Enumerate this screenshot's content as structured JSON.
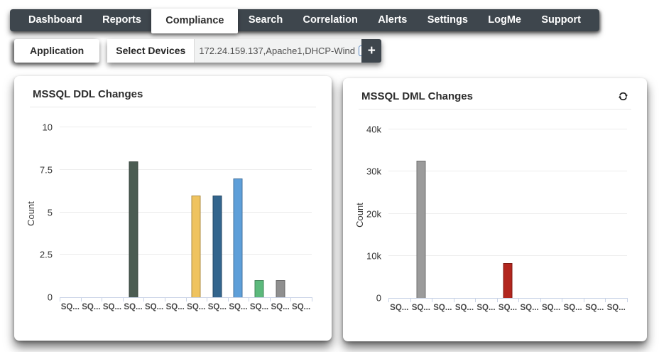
{
  "nav": {
    "tabs": [
      {
        "label": "Dashboard",
        "active": false
      },
      {
        "label": "Reports",
        "active": false
      },
      {
        "label": "Compliance",
        "active": true
      },
      {
        "label": "Search",
        "active": false
      },
      {
        "label": "Correlation",
        "active": false
      },
      {
        "label": "Alerts",
        "active": false
      },
      {
        "label": "Settings",
        "active": false
      },
      {
        "label": "LogMe",
        "active": false
      },
      {
        "label": "Support",
        "active": false
      }
    ]
  },
  "toolbar": {
    "application_label": "Application",
    "select_devices_label": "Select Devices",
    "device_input_value": "172.24.159.137,Apache1,DHCP-Wind",
    "device_picker_glyph": "*",
    "add_button_label": "+"
  },
  "icons": {
    "refresh": "refresh-icon",
    "device_picker": "device-picker-icon",
    "add": "plus-icon"
  },
  "colors": {
    "navbar_bg": "#3e464d",
    "active_tab_bg": "#ffffff",
    "axis_line": "#c9d3e6",
    "gridline": "#ececec",
    "card_bg": "#ffffff"
  },
  "chart_data": [
    {
      "type": "bar",
      "title": "MSSQL DDL Changes",
      "ylabel": "Count",
      "xlabel": "",
      "ylim": [
        0,
        10
      ],
      "yticks": [
        0,
        2.5,
        5,
        7.5,
        10
      ],
      "ytick_labels": [
        "0",
        "2.5",
        "5",
        "7.5",
        "10"
      ],
      "categories": [
        "SQ...",
        "SQ...",
        "SQ...",
        "SQ...",
        "SQ...",
        "SQ...",
        "SQ...",
        "SQ...",
        "SQ...",
        "SQ...",
        "SQ...",
        "SQ..."
      ],
      "values": [
        0,
        0,
        0,
        8,
        0,
        0,
        6,
        6,
        7,
        1,
        1,
        0
      ],
      "bar_colors": [
        "",
        "",
        "",
        "#4b5c52",
        "",
        "",
        "#efc35f",
        "#33658d",
        "#5e9fd9",
        "#5cb97c",
        "#8f8f8f",
        ""
      ],
      "grid": true,
      "legend": "none",
      "has_refresh": false
    },
    {
      "type": "bar",
      "title": "MSSQL DML Changes",
      "ylabel": "Count",
      "xlabel": "",
      "ylim": [
        0,
        40000
      ],
      "yticks": [
        0,
        10000,
        20000,
        30000,
        40000
      ],
      "ytick_labels": [
        "0",
        "10k",
        "20k",
        "30k",
        "40k"
      ],
      "categories": [
        "SQ...",
        "SQ...",
        "SQ...",
        "SQ...",
        "SQ...",
        "SQ...",
        "SQ...",
        "SQ...",
        "SQ...",
        "SQ...",
        "SQ..."
      ],
      "values": [
        0,
        32500,
        0,
        0,
        0,
        8300,
        0,
        0,
        0,
        0,
        0
      ],
      "bar_colors": [
        "",
        "#9b9b9b",
        "",
        "",
        "",
        "#b2261e",
        "",
        "",
        "",
        "",
        ""
      ],
      "grid": true,
      "legend": "none",
      "has_refresh": true
    }
  ]
}
